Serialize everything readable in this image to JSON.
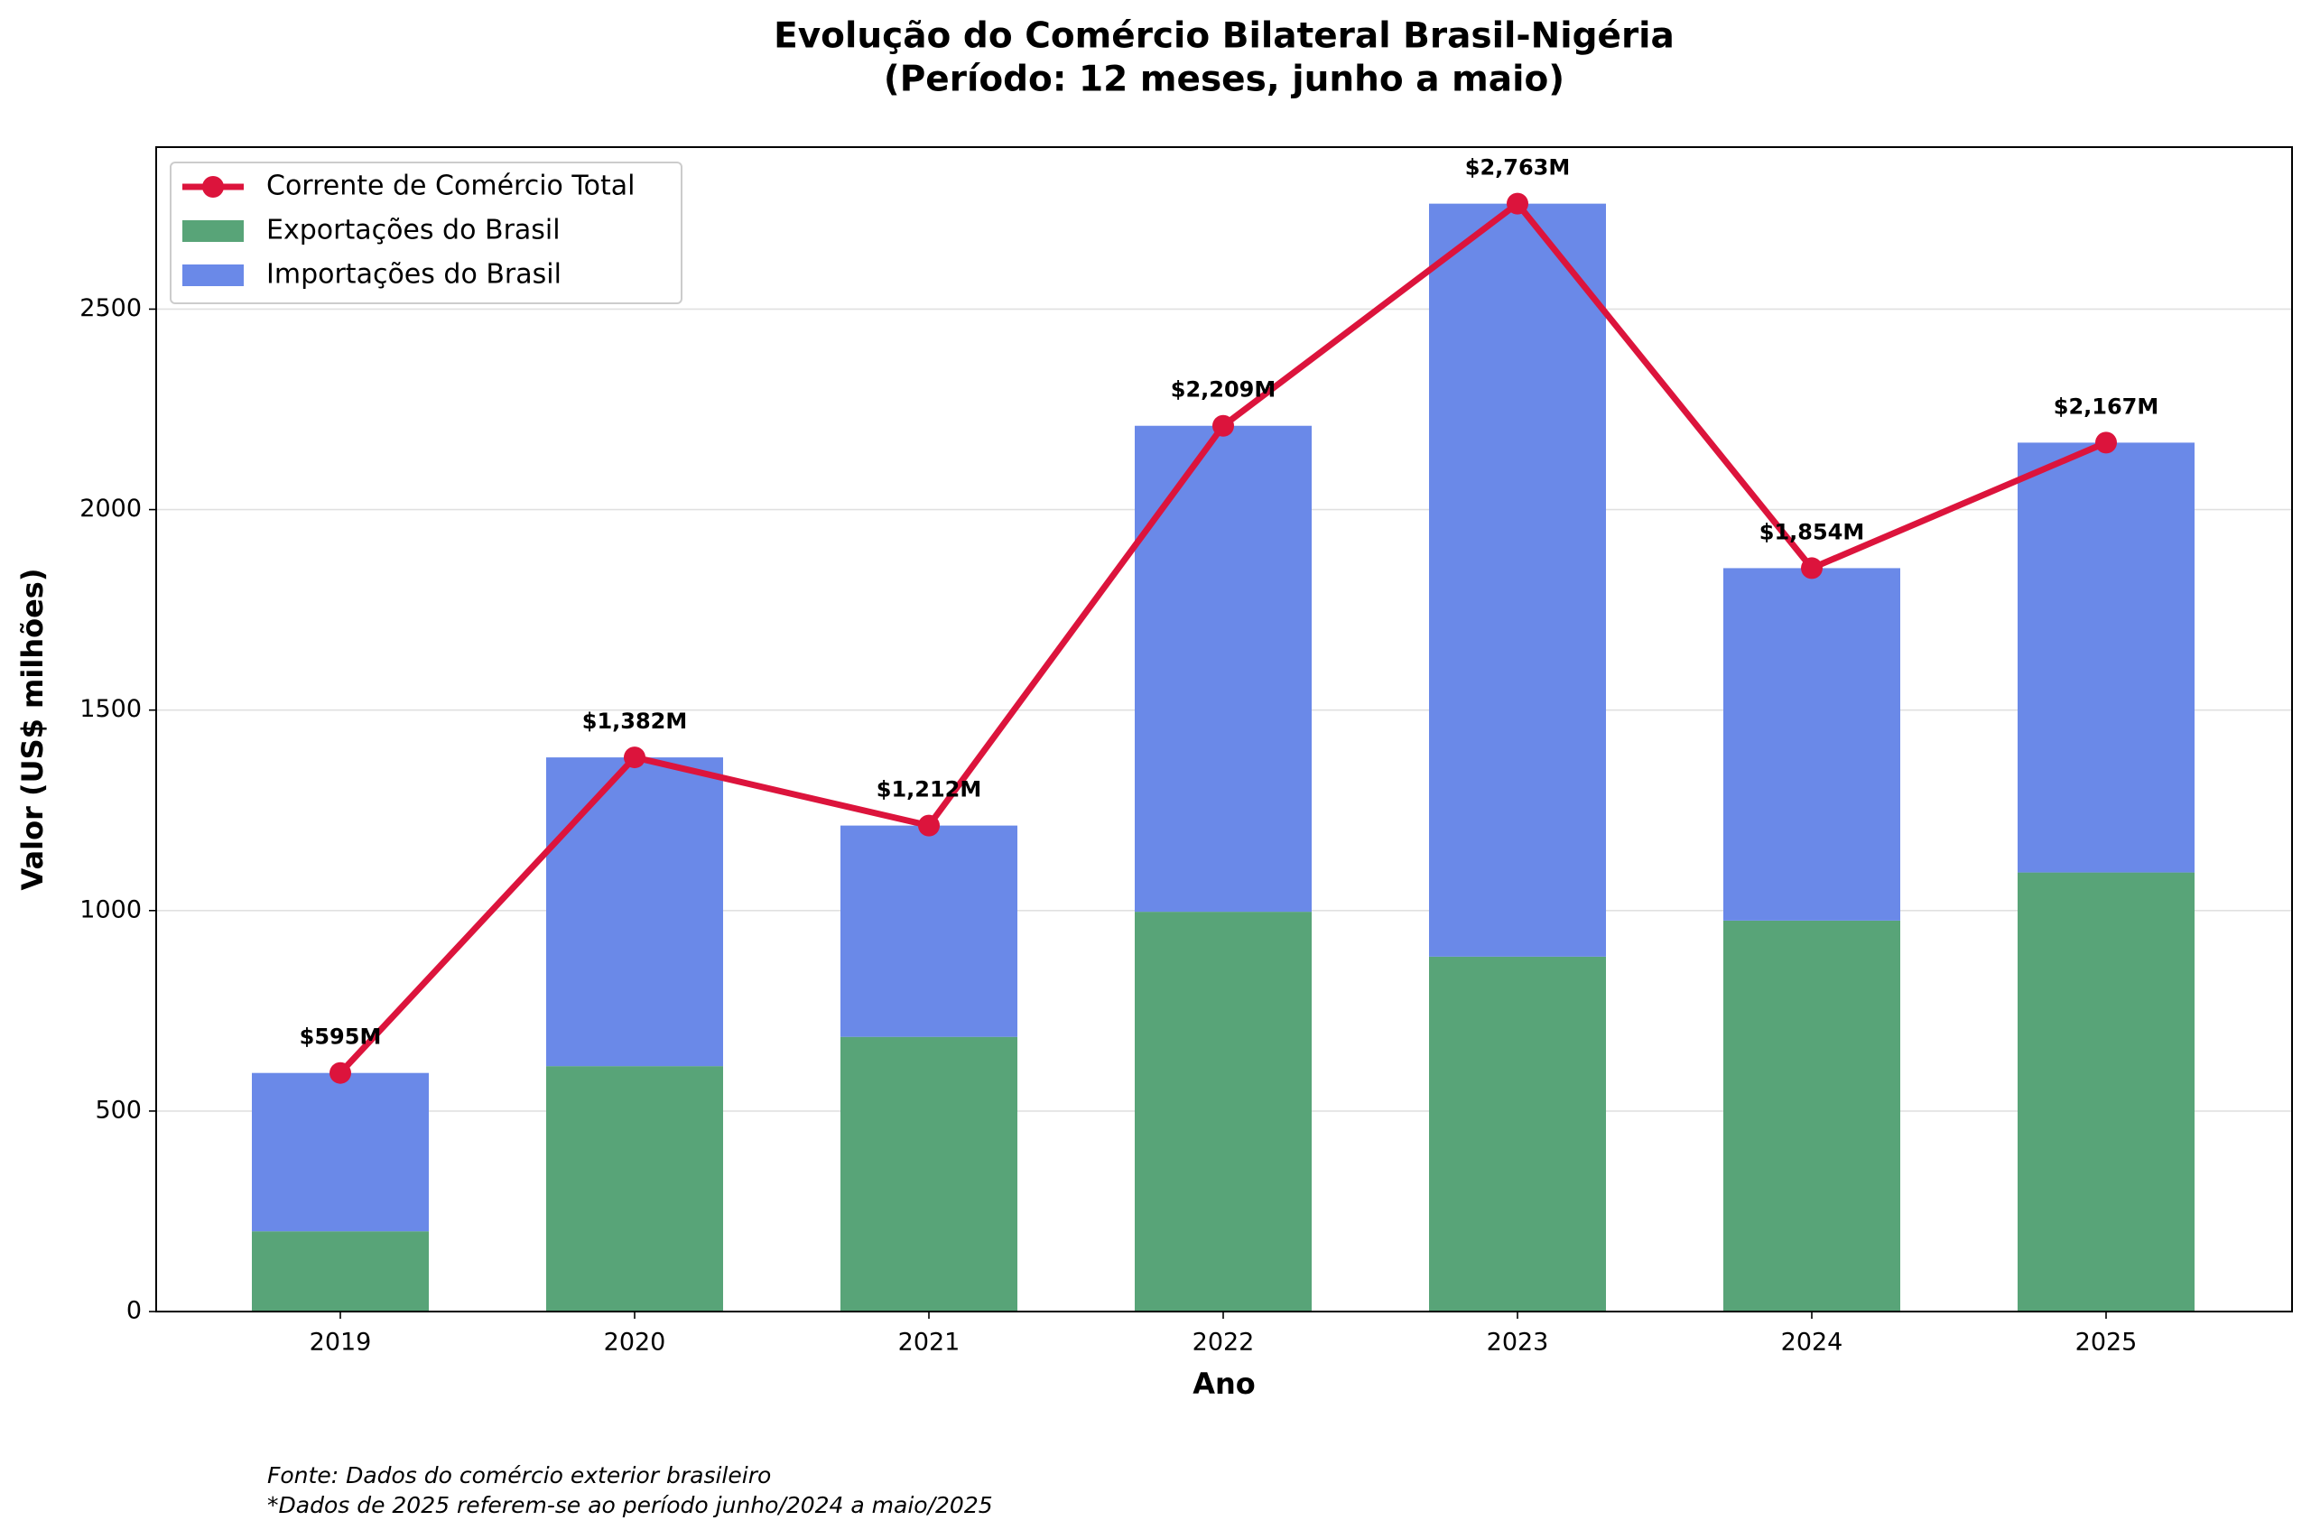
{
  "chart_data": {
    "type": "bar",
    "stacked": true,
    "title": "Evolução do Comércio Bilateral Brasil-Nigéria",
    "subtitle": "(Período: 12 meses, junho a maio)",
    "x_label": "Ano",
    "y_label": "Valor (US$ milhões)",
    "categories": [
      "2019",
      "2020",
      "2021",
      "2022",
      "2023",
      "2024",
      "2025"
    ],
    "series": [
      {
        "name": "Corrente de Comércio Total",
        "type": "line",
        "color": "#dc143c",
        "values": [
          595,
          1382,
          1212,
          2209,
          2763,
          1854,
          2167
        ],
        "value_labels": [
          "$595M",
          "$1,382M",
          "$1,212M",
          "$2,209M",
          "$2,763M",
          "$1,854M",
          "$2,167M"
        ]
      },
      {
        "name": "Exportações do Brasil",
        "type": "bar",
        "color": "#58a478",
        "values": [
          200,
          612,
          685,
          997,
          885,
          975,
          1095
        ]
      },
      {
        "name": "Importações do Brasil",
        "type": "bar",
        "color": "#6a89e8",
        "values": [
          395,
          770,
          527,
          1212,
          1878,
          879,
          1072
        ]
      }
    ],
    "ylim": [
      0,
      2904
    ],
    "yticks": [
      0,
      500,
      1000,
      1500,
      2000,
      2500
    ],
    "grid": true,
    "legend": "upper left",
    "notes": [
      "Fonte: Dados do comércio exterior brasileiro",
      "*Dados de 2025 referem-se ao período junho/2024 a maio/2025"
    ]
  }
}
